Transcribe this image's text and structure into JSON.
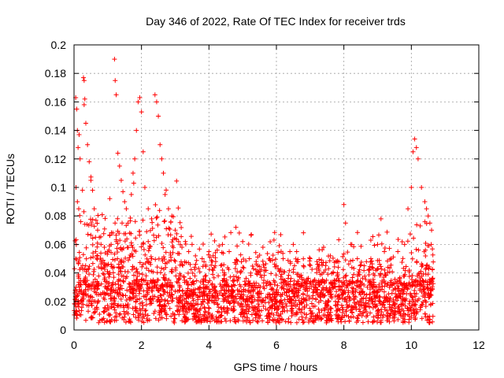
{
  "chart_data": {
    "type": "scatter",
    "title": "Day 346 of 2022, Rate Of TEC Index for receiver trds",
    "xlabel": "GPS time / hours",
    "ylabel": "ROTI / TECUs",
    "xlim": [
      0,
      12
    ],
    "ylim": [
      0,
      0.2
    ],
    "x_ticks": [
      0,
      2,
      4,
      6,
      8,
      10,
      12
    ],
    "x_tick_labels": [
      "0",
      "2",
      "4",
      "6",
      "8",
      "10",
      "12"
    ],
    "y_ticks": [
      0,
      0.02,
      0.04,
      0.06,
      0.08,
      0.1,
      0.12,
      0.14,
      0.16,
      0.18,
      0.2
    ],
    "y_tick_labels": [
      "0",
      "0.02",
      "0.04",
      "0.06",
      "0.08",
      "0.1",
      "0.12",
      "0.14",
      "0.16",
      "0.18",
      "0.2"
    ],
    "grid": true,
    "marker": "plus",
    "color": "#ff0000",
    "series": [
      {
        "points": [
          [
            0.05,
            0.163
          ],
          [
            0.08,
            0.155
          ],
          [
            0.1,
            0.14
          ],
          [
            0.12,
            0.128
          ],
          [
            0.15,
            0.137
          ],
          [
            0.18,
            0.12
          ],
          [
            0.06,
            0.1
          ],
          [
            0.1,
            0.09
          ],
          [
            0.14,
            0.085
          ],
          [
            0.2,
            0.076
          ],
          [
            0.25,
            0.098
          ],
          [
            0.28,
            0.177
          ],
          [
            0.3,
            0.175
          ],
          [
            0.32,
            0.162
          ],
          [
            0.3,
            0.158
          ],
          [
            0.35,
            0.145
          ],
          [
            0.4,
            0.13
          ],
          [
            0.45,
            0.118
          ],
          [
            0.5,
            0.105
          ],
          [
            0.55,
            0.098
          ],
          [
            0.6,
            0.085
          ],
          [
            0.65,
            0.077
          ],
          [
            0.7,
            0.07
          ],
          [
            0.75,
            0.065
          ],
          [
            0.8,
            0.06
          ],
          [
            0.9,
            0.058
          ],
          [
            1.0,
            0.055
          ],
          [
            1.1,
            0.06
          ],
          [
            1.15,
            0.068
          ],
          [
            1.2,
            0.19
          ],
          [
            1.22,
            0.175
          ],
          [
            1.25,
            0.165
          ],
          [
            1.3,
            0.124
          ],
          [
            1.35,
            0.115
          ],
          [
            1.4,
            0.105
          ],
          [
            1.45,
            0.097
          ],
          [
            1.5,
            0.09
          ],
          [
            1.55,
            0.085
          ],
          [
            1.6,
            0.075
          ],
          [
            1.65,
            0.068
          ],
          [
            1.7,
            0.095
          ],
          [
            1.75,
            0.11
          ],
          [
            1.8,
            0.12
          ],
          [
            1.85,
            0.14
          ],
          [
            1.9,
            0.16
          ],
          [
            1.95,
            0.163
          ],
          [
            2.0,
            0.153
          ],
          [
            2.05,
            0.125
          ],
          [
            2.1,
            0.1
          ],
          [
            2.2,
            0.085
          ],
          [
            2.3,
            0.078
          ],
          [
            2.4,
            0.165
          ],
          [
            2.45,
            0.16
          ],
          [
            2.5,
            0.15
          ],
          [
            2.55,
            0.13
          ],
          [
            2.6,
            0.12
          ],
          [
            2.65,
            0.11
          ],
          [
            2.7,
            0.095
          ],
          [
            2.8,
            0.085
          ],
          [
            2.9,
            0.08
          ],
          [
            3.0,
            0.07
          ],
          [
            3.1,
            0.062
          ],
          [
            3.2,
            0.058
          ],
          [
            3.3,
            0.062
          ],
          [
            3.4,
            0.055
          ],
          [
            3.5,
            0.06
          ],
          [
            3.6,
            0.052
          ],
          [
            3.8,
            0.05
          ],
          [
            4.0,
            0.055
          ],
          [
            4.2,
            0.048
          ],
          [
            4.4,
            0.06
          ],
          [
            4.6,
            0.055
          ],
          [
            4.8,
            0.072
          ],
          [
            4.9,
            0.068
          ],
          [
            5.0,
            0.062
          ],
          [
            5.2,
            0.05
          ],
          [
            5.4,
            0.048
          ],
          [
            5.6,
            0.058
          ],
          [
            5.8,
            0.05
          ],
          [
            6.0,
            0.045
          ],
          [
            6.2,
            0.05
          ],
          [
            6.4,
            0.055
          ],
          [
            6.5,
            0.06
          ],
          [
            6.6,
            0.055
          ],
          [
            6.8,
            0.045
          ],
          [
            7.0,
            0.05
          ],
          [
            7.2,
            0.048
          ],
          [
            7.4,
            0.058
          ],
          [
            7.6,
            0.052
          ],
          [
            7.8,
            0.048
          ],
          [
            8.0,
            0.088
          ],
          [
            8.05,
            0.075
          ],
          [
            8.2,
            0.06
          ],
          [
            8.4,
            0.05
          ],
          [
            8.6,
            0.045
          ],
          [
            8.8,
            0.05
          ],
          [
            9.0,
            0.06
          ],
          [
            9.1,
            0.078
          ],
          [
            9.2,
            0.055
          ],
          [
            9.4,
            0.05
          ],
          [
            9.6,
            0.055
          ],
          [
            9.8,
            0.06
          ],
          [
            9.9,
            0.085
          ],
          [
            10.0,
            0.1
          ],
          [
            10.05,
            0.125
          ],
          [
            10.1,
            0.134
          ],
          [
            10.15,
            0.128
          ],
          [
            10.2,
            0.12
          ],
          [
            10.3,
            0.1
          ],
          [
            10.4,
            0.09
          ],
          [
            10.45,
            0.085
          ],
          [
            10.5,
            0.08
          ],
          [
            10.55,
            0.075
          ],
          [
            10.6,
            0.07
          ]
        ]
      }
    ]
  }
}
